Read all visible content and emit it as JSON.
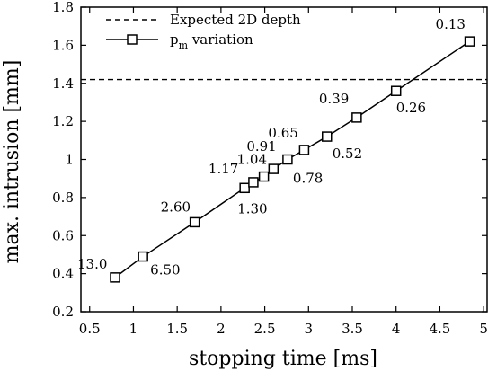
{
  "chart_data": {
    "type": "line",
    "xlabel": "stopping time [ms]",
    "ylabel": "max. intrusion [mm]",
    "xlim": [
      0.4,
      5.05
    ],
    "ylim": [
      0.2,
      1.8
    ],
    "xticks": [
      "0.5",
      "1",
      "1.5",
      "2",
      "2.5",
      "3",
      "3.5",
      "4",
      "4.5",
      "5"
    ],
    "yticks": [
      "0.2",
      "0.4",
      "0.6",
      "0.8",
      "1",
      "1.2",
      "1.4",
      "1.6",
      "1.8"
    ],
    "legend_position": "top-left",
    "reference_line": {
      "name": "Expected 2D depth",
      "y": 1.42,
      "style": "dashed"
    },
    "series": [
      {
        "name": "p_m variation",
        "legend_main": "p",
        "legend_sub": "m",
        "legend_rest": " variation",
        "marker": "square",
        "x": [
          0.79,
          1.11,
          1.7,
          2.27,
          2.37,
          2.49,
          2.6,
          2.76,
          2.95,
          3.21,
          3.55,
          4.0,
          4.84
        ],
        "y": [
          0.38,
          0.49,
          0.67,
          0.85,
          0.88,
          0.91,
          0.95,
          1.0,
          1.05,
          1.12,
          1.22,
          1.36,
          1.62
        ],
        "labels": [
          "13.0",
          "6.50",
          "2.60",
          "1.30",
          "1.17",
          "1.04",
          "0.91",
          "0.78",
          "0.65",
          "0.52",
          "0.39",
          "0.26",
          "0.13"
        ]
      }
    ]
  }
}
